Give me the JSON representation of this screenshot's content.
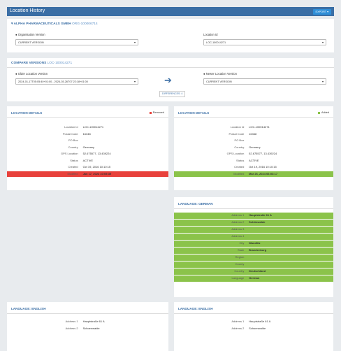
{
  "header": {
    "title": "Location History",
    "export_button": "EXPORT"
  },
  "organisation": {
    "name": "ALPHA PHARMACEUTICALS GMBH",
    "id": "ORG-100006714",
    "version_label": "Organisation Version",
    "version_value": "CURRENT VERSION",
    "location_label": "Location Id",
    "location_value": "LOC-100014271"
  },
  "compare": {
    "title": "COMPARE VERSIONS",
    "location_id": "LOC-100014271",
    "older_label": "Older Location Version",
    "older_value": "2024-01-17T05:05:40+01:00 - 2024-03-26T07:22:18+01:00",
    "newer_label": "Newer Location Version",
    "newer_value": "CURRENT VERSION",
    "differences_button": "DIFFERENCES: 4"
  },
  "panels": [
    {
      "title": "LOCATION DETAILS",
      "legend": "Removed",
      "highlight": "removed",
      "rows": [
        {
          "label": "Location Id",
          "value": "LOC-100014271"
        },
        {
          "label": "Postal Code",
          "value": "16348"
        },
        {
          "label": "PO Box"
        },
        {
          "label": "Country",
          "value": "Germany"
        },
        {
          "label": "GPS Location",
          "value": "52.675577, 13.439224"
        },
        {
          "label": "Status",
          "value": "ACTIVE"
        },
        {
          "label": "Created",
          "value": "Oct 19, 2016 10:10:15"
        },
        {
          "label": "Modified",
          "value": "Jan 17, 2024 10:05:39",
          "changed": true
        }
      ]
    },
    {
      "title": "LOCATION DETAILS",
      "legend": "Added",
      "highlight": "added",
      "rows": [
        {
          "label": "Location Id",
          "value": "LOC-100014271"
        },
        {
          "label": "Postal Code",
          "value": "16348"
        },
        {
          "label": "PO Box"
        },
        {
          "label": "Country",
          "value": "Germany"
        },
        {
          "label": "GPS Location",
          "value": "52.675577, 13.439224"
        },
        {
          "label": "Status",
          "value": "ACTIVE"
        },
        {
          "label": "Created",
          "value": "Oct 19, 2016 10:10:15"
        },
        {
          "label": "Modified",
          "value": "Mar 26, 2024 06:03:17",
          "changed": true
        }
      ]
    },
    {
      "title": "LANGUAGE: GERMAN",
      "highlight": "added",
      "rows": [
        {
          "label": "Address 1",
          "value": "Hauptstraße 61 A",
          "changed": true
        },
        {
          "label": "Address 2",
          "value": "Schönwalde",
          "changed": true
        },
        {
          "label": "Address 3",
          "changed": true
        },
        {
          "label": "Address 4",
          "changed": true
        },
        {
          "label": "City",
          "value": "Wandlitz",
          "changed": true
        },
        {
          "label": "State",
          "value": "Brandenburg",
          "changed": true
        },
        {
          "label": "Region",
          "changed": true
        },
        {
          "label": "County",
          "changed": true
        },
        {
          "label": "Country",
          "value": "Deutschland",
          "changed": true
        },
        {
          "label": "Language",
          "value": "German",
          "changed": true
        }
      ]
    },
    {
      "title": "LANGUAGE: ENGLISH",
      "rows": [
        {
          "label": "Address 1",
          "value": "Hauptstraße 61 A"
        },
        {
          "label": "Address 2",
          "value": "Schoenwalde"
        }
      ]
    },
    {
      "title": "LANGUAGE: ENGLISH",
      "rows": [
        {
          "label": "Address 1",
          "value": "Hauptstraße 61 A"
        },
        {
          "label": "Address 2",
          "value": "Schoenwalde"
        }
      ]
    }
  ]
}
